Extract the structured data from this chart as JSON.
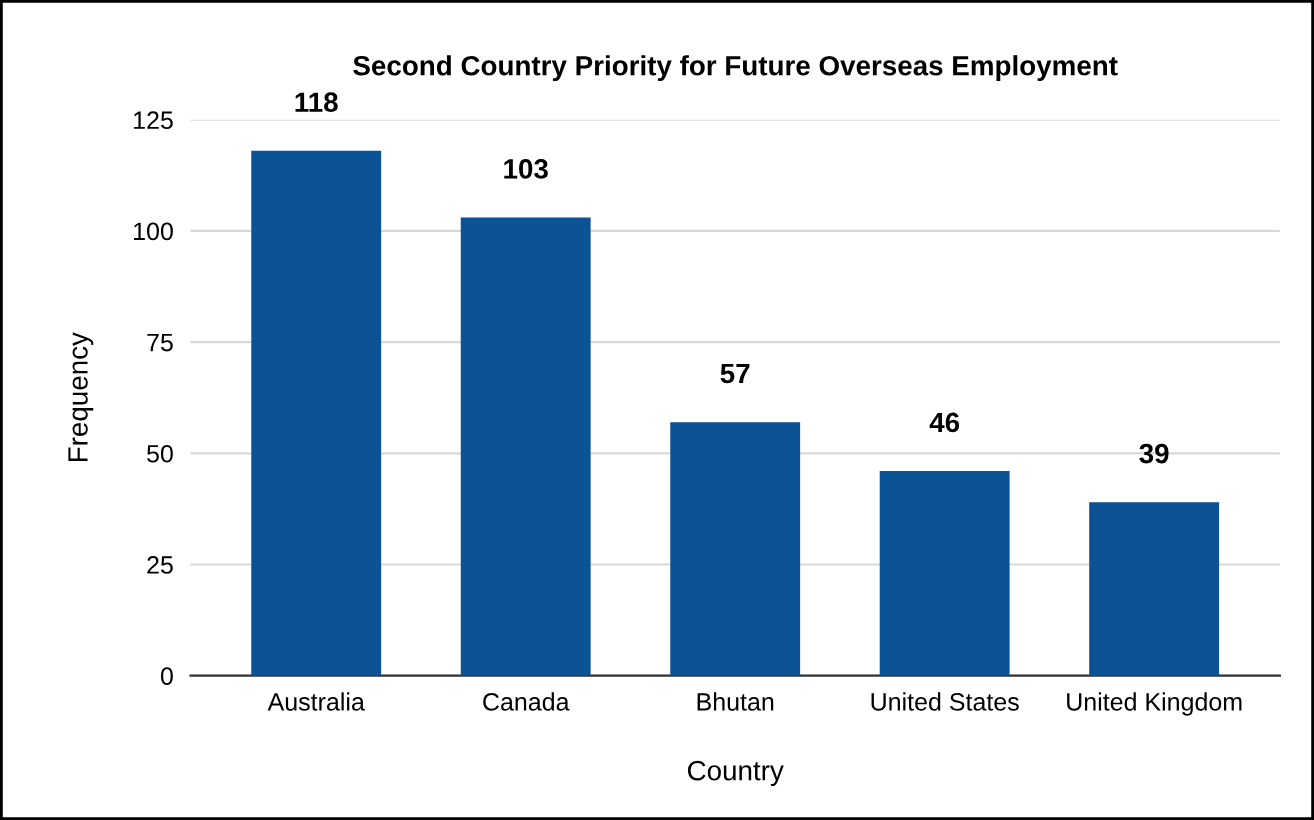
{
  "chart_data": {
    "type": "bar",
    "title": "Second Country Priority for Future Overseas Employment",
    "xlabel": "Country",
    "ylabel": "Frequency",
    "categories": [
      "Australia",
      "Canada",
      "Bhutan",
      "United States",
      "United Kingdom"
    ],
    "values": [
      118,
      103,
      57,
      46,
      39
    ],
    "color": "#0b5394",
    "ylim": [
      0,
      125
    ],
    "yticks": [
      0,
      25,
      50,
      75,
      100,
      125
    ],
    "grid": "y",
    "data_labels": true
  }
}
